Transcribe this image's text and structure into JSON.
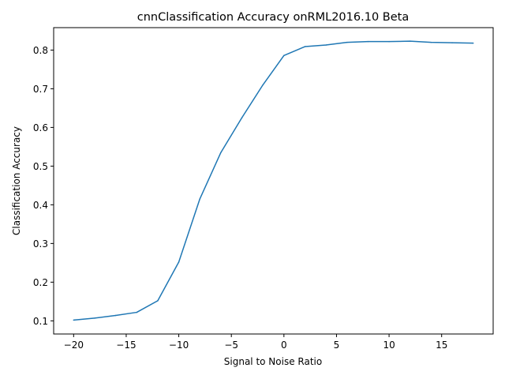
{
  "chart_data": {
    "type": "line",
    "title": "cnnClassification Accuracy onRML2016.10 Beta",
    "xlabel": "Signal to Noise Ratio",
    "ylabel": "Classification Accuracy",
    "xlim": [
      -21.9,
      19.9
    ],
    "ylim": [
      0.066,
      0.858
    ],
    "xticks": [
      -20,
      -15,
      -10,
      -5,
      0,
      5,
      10,
      15
    ],
    "xtick_labels": [
      "−20",
      "−15",
      "−10",
      "−5",
      "0",
      "5",
      "10",
      "15"
    ],
    "yticks": [
      0.1,
      0.2,
      0.3,
      0.4,
      0.5,
      0.6,
      0.7,
      0.8
    ],
    "ytick_labels": [
      "0.1",
      "0.2",
      "0.3",
      "0.4",
      "0.5",
      "0.6",
      "0.7",
      "0.8"
    ],
    "grid": false,
    "series": [
      {
        "color": "#1f77b4",
        "x": [
          -20,
          -18,
          -16,
          -14,
          -12,
          -10,
          -8,
          -6,
          -4,
          -2,
          0,
          2,
          4,
          6,
          8,
          10,
          12,
          14,
          16,
          18
        ],
        "values": [
          0.102,
          0.107,
          0.114,
          0.122,
          0.152,
          0.252,
          0.415,
          0.535,
          0.625,
          0.71,
          0.786,
          0.809,
          0.813,
          0.82,
          0.822,
          0.822,
          0.823,
          0.82,
          0.819,
          0.818
        ]
      }
    ]
  }
}
